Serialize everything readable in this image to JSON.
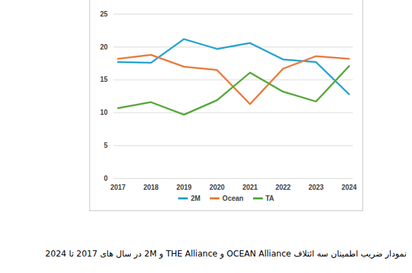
{
  "chart_data": {
    "type": "line",
    "title": "نمودار ضریب اطمینان سه ائتلاف OCEAN Alliance و THE Alliance و 2M  در سال های 2017 تا 2024",
    "categories": [
      "2017",
      "2018",
      "2019",
      "2020",
      "2021",
      "2022",
      "2023",
      "2024"
    ],
    "series": [
      {
        "name": "2M",
        "color": "#27a2cf",
        "values": [
          17.7,
          17.6,
          21.2,
          19.7,
          20.6,
          18.1,
          17.7,
          12.8
        ]
      },
      {
        "name": "Ocean",
        "color": "#ea7a3c",
        "values": [
          18.2,
          18.8,
          17.0,
          16.5,
          11.3,
          16.7,
          18.6,
          18.2
        ]
      },
      {
        "name": "TA",
        "color": "#57a83a",
        "values": [
          10.7,
          11.6,
          9.7,
          11.9,
          16.1,
          13.2,
          11.7,
          17.1
        ]
      }
    ],
    "ylim": [
      0,
      25
    ],
    "yticks": [
      0,
      5,
      10,
      15,
      20,
      25
    ],
    "grid": true,
    "legend": "bottom"
  }
}
